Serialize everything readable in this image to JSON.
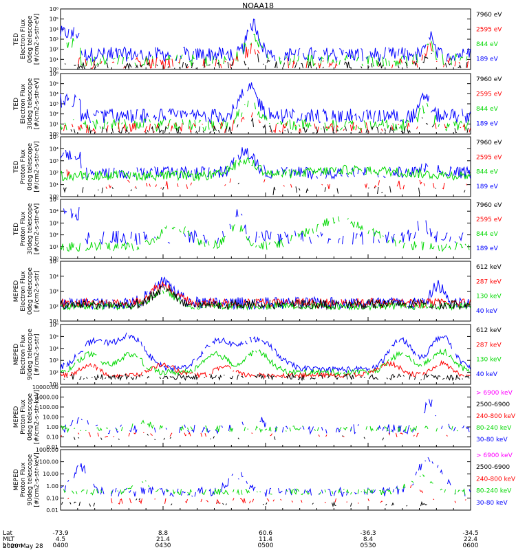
{
  "title": "NOAA18",
  "colors": {
    "black": "#000000",
    "red": "#ff0000",
    "green": "#00d800",
    "blue": "#0000ff",
    "magenta": "#ff00ff"
  },
  "chart_data": [
    {
      "type": "line",
      "ylabel": [
        "TED",
        "Electron Flux",
        "0deg telescope",
        "[#/cm2-s-str-eV]"
      ],
      "yscale": "log",
      "ylim": [
        1,
        1000000
      ],
      "yticks": [
        "10⁰",
        "10¹",
        "10²",
        "10³",
        "10⁴",
        "10⁵",
        "10⁶"
      ],
      "legend": [
        {
          "name": "7960 eV",
          "color": "black"
        },
        {
          "name": "2595 eV",
          "color": "red"
        },
        {
          "name": "844 eV",
          "color": "green"
        },
        {
          "name": "189 eV",
          "color": "blue"
        }
      ]
    },
    {
      "type": "line",
      "ylabel": [
        "TED",
        "Electron Flux",
        "30deg telescope",
        "[#/cm2-s-str-eV]"
      ],
      "yscale": "log",
      "ylim": [
        1,
        1000000
      ],
      "yticks": [
        "10⁰",
        "10¹",
        "10²",
        "10³",
        "10⁴",
        "10⁵",
        "10⁶"
      ],
      "legend": [
        {
          "name": "7960 eV",
          "color": "black"
        },
        {
          "name": "2595 eV",
          "color": "red"
        },
        {
          "name": "844 eV",
          "color": "green"
        },
        {
          "name": "189 eV",
          "color": "blue"
        }
      ]
    },
    {
      "type": "line",
      "ylabel": [
        "TED",
        "Proton Flux",
        "0deg telescope",
        "[#/cm2-s-str-eV]"
      ],
      "yscale": "log",
      "ylim": [
        1,
        100000
      ],
      "yticks": [
        "10⁰",
        "10¹",
        "10²",
        "10³",
        "10⁴",
        "10⁵"
      ],
      "legend": [
        {
          "name": "7960 eV",
          "color": "black"
        },
        {
          "name": "2595 eV",
          "color": "red"
        },
        {
          "name": "844 eV",
          "color": "green"
        },
        {
          "name": "189 eV",
          "color": "blue"
        }
      ]
    },
    {
      "type": "line",
      "ylabel": [
        "TED",
        "Proton Flux",
        "30deg telescope",
        "[#/cm2-s-str-eV]"
      ],
      "yscale": "log",
      "ylim": [
        1,
        100000
      ],
      "yticks": [
        "10⁰",
        "10¹",
        "10²",
        "10³",
        "10⁴",
        "10⁵"
      ],
      "legend": [
        {
          "name": "7960 eV",
          "color": "black"
        },
        {
          "name": "2595 eV",
          "color": "red"
        },
        {
          "name": "844 eV",
          "color": "green"
        },
        {
          "name": "189 eV",
          "color": "blue"
        }
      ]
    },
    {
      "type": "line",
      "ylabel": [
        "MEPED",
        "Electron Flux",
        "0deg telescope",
        "[#/cm2-s-str]"
      ],
      "yscale": "log",
      "ylim": [
        10,
        100000
      ],
      "yticks": [
        "10¹",
        "10²",
        "10³",
        "10⁴",
        "10⁵"
      ],
      "legend": [
        {
          "name": "612 keV",
          "color": "black"
        },
        {
          "name": "287 keV",
          "color": "red"
        },
        {
          "name": "130 keV",
          "color": "green"
        },
        {
          "name": "40 keV",
          "color": "blue"
        }
      ]
    },
    {
      "type": "line",
      "ylabel": [
        "MEPED",
        "Electron Flux",
        "90deg telescope",
        "[#/cm2-s-str]"
      ],
      "yscale": "log",
      "ylim": [
        10,
        1000000
      ],
      "yticks": [
        "10¹",
        "10²",
        "10³",
        "10⁴",
        "10⁵",
        "10⁶"
      ],
      "legend": [
        {
          "name": "612 keV",
          "color": "black"
        },
        {
          "name": "287 keV",
          "color": "red"
        },
        {
          "name": "130 keV",
          "color": "green"
        },
        {
          "name": "40 keV",
          "color": "blue"
        }
      ]
    },
    {
      "type": "line",
      "ylabel": [
        "MEPED",
        "Proton Flux",
        "0deg telescope",
        "[#/cm2-s-str-keV]"
      ],
      "yscale": "log",
      "ylim": [
        0.01,
        10000
      ],
      "yticks": [
        "0.01",
        "0.10",
        "1.00",
        "10.00",
        "100.00",
        "1000.00",
        "10000.00"
      ],
      "legend": [
        {
          "name": "> 6900 keV",
          "color": "magenta"
        },
        {
          "name": "2500-6900",
          "color": "black"
        },
        {
          "name": "240-800 keV",
          "color": "red"
        },
        {
          "name": "80-240 keV",
          "color": "green"
        },
        {
          "name": "30-80 keV",
          "color": "blue"
        }
      ]
    },
    {
      "type": "line",
      "ylabel": [
        "MEPED",
        "Proton Flux",
        "90deg telescope",
        "[#/cm2-s-str-keV]"
      ],
      "yscale": "log",
      "ylim": [
        0.01,
        1000
      ],
      "yticks": [
        "0.01",
        "0.10",
        "1.00",
        "10.00",
        "100.00",
        "1000.00"
      ],
      "legend": [
        {
          "name": "> 6900 keV",
          "color": "magenta"
        },
        {
          "name": "2500-6900",
          "color": "black"
        },
        {
          "name": "240-800 keV",
          "color": "red"
        },
        {
          "name": "80-240 keV",
          "color": "green"
        },
        {
          "name": "30-80 keV",
          "color": "blue"
        }
      ]
    }
  ],
  "x_axis": {
    "rows": [
      "Lat",
      "MLT",
      "hhmm"
    ],
    "ticks": [
      {
        "t": 0,
        "Lat": "-73.9",
        "MLT": "4.5",
        "hhmm": "0400"
      },
      {
        "t": 30,
        "Lat": "8.8",
        "MLT": "21.4",
        "hhmm": "0430"
      },
      {
        "t": 60,
        "Lat": "60.6",
        "MLT": "11.4",
        "hhmm": "0500"
      },
      {
        "t": 90,
        "Lat": "-36.3",
        "MLT": "8.4",
        "hhmm": "0530"
      },
      {
        "t": 120,
        "Lat": "-34.5",
        "MLT": "22.4",
        "hhmm": "0600"
      }
    ],
    "date": "2020 May 28"
  }
}
